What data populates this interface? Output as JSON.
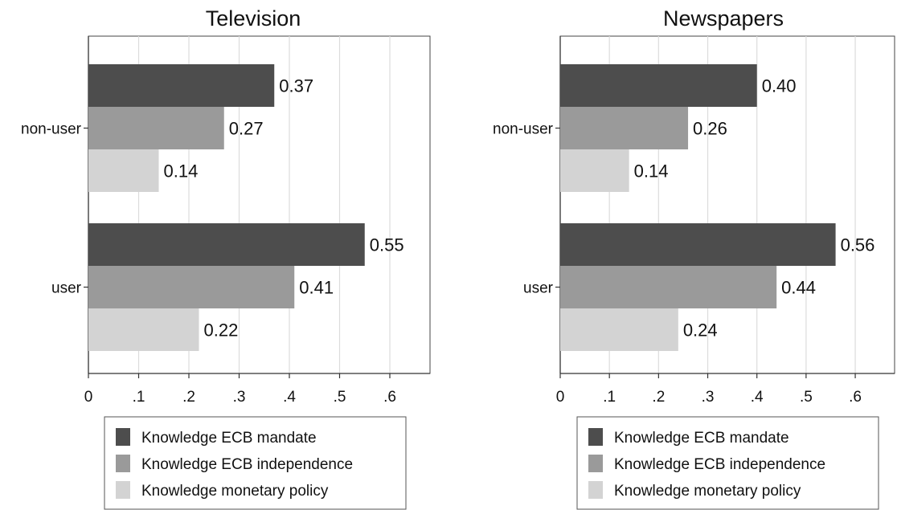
{
  "chart_data": [
    {
      "type": "bar",
      "orientation": "horizontal",
      "title": "Television",
      "categories": [
        "non-user",
        "user"
      ],
      "series": [
        {
          "name": "Knowledge ECB mandate",
          "values": [
            0.37,
            0.55
          ],
          "labels": [
            "0.37",
            "0.55"
          ],
          "color": "#4d4d4d"
        },
        {
          "name": "Knowledge ECB independence",
          "values": [
            0.27,
            0.41
          ],
          "labels": [
            "0.27",
            "0.41"
          ],
          "color": "#9a9a9a"
        },
        {
          "name": "Knowledge monetary policy",
          "values": [
            0.14,
            0.22
          ],
          "labels": [
            "0.14",
            "0.22"
          ],
          "color": "#d3d3d3"
        }
      ],
      "xticks": [
        0,
        0.1,
        0.2,
        0.3,
        0.4,
        0.5,
        0.6
      ],
      "xtick_labels": [
        "0",
        ".1",
        ".2",
        ".3",
        ".4",
        ".5",
        ".6"
      ],
      "xlim": [
        0,
        0.68
      ],
      "grid": true,
      "legend": "bottom"
    },
    {
      "type": "bar",
      "orientation": "horizontal",
      "title": "Newspapers",
      "categories": [
        "non-user",
        "user"
      ],
      "series": [
        {
          "name": "Knowledge ECB mandate",
          "values": [
            0.4,
            0.56
          ],
          "labels": [
            "0.40",
            "0.56"
          ],
          "color": "#4d4d4d"
        },
        {
          "name": "Knowledge ECB independence",
          "values": [
            0.26,
            0.44
          ],
          "labels": [
            "0.26",
            "0.44"
          ],
          "color": "#9a9a9a"
        },
        {
          "name": "Knowledge monetary policy",
          "values": [
            0.14,
            0.24
          ],
          "labels": [
            "0.14",
            "0.24"
          ],
          "color": "#d3d3d3"
        }
      ],
      "xticks": [
        0,
        0.1,
        0.2,
        0.3,
        0.4,
        0.5,
        0.6
      ],
      "xtick_labels": [
        "0",
        ".1",
        ".2",
        ".3",
        ".4",
        ".5",
        ".6"
      ],
      "xlim": [
        0,
        0.68
      ],
      "grid": true,
      "legend": "bottom"
    }
  ]
}
